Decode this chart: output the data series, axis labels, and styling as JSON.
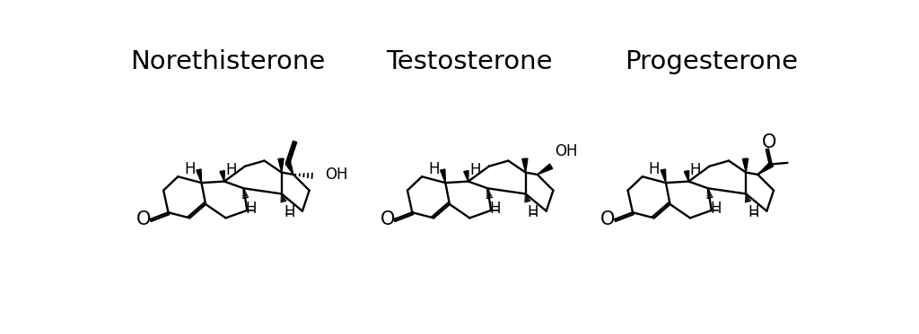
{
  "title_norethisterone": "Norethisterone",
  "title_testosterone": "Testosterone",
  "title_progesterone": "Progesterone",
  "background_color": "#ffffff",
  "line_color": "#000000",
  "title_fontsize": 21,
  "fig_width": 10.24,
  "fig_height": 3.73
}
